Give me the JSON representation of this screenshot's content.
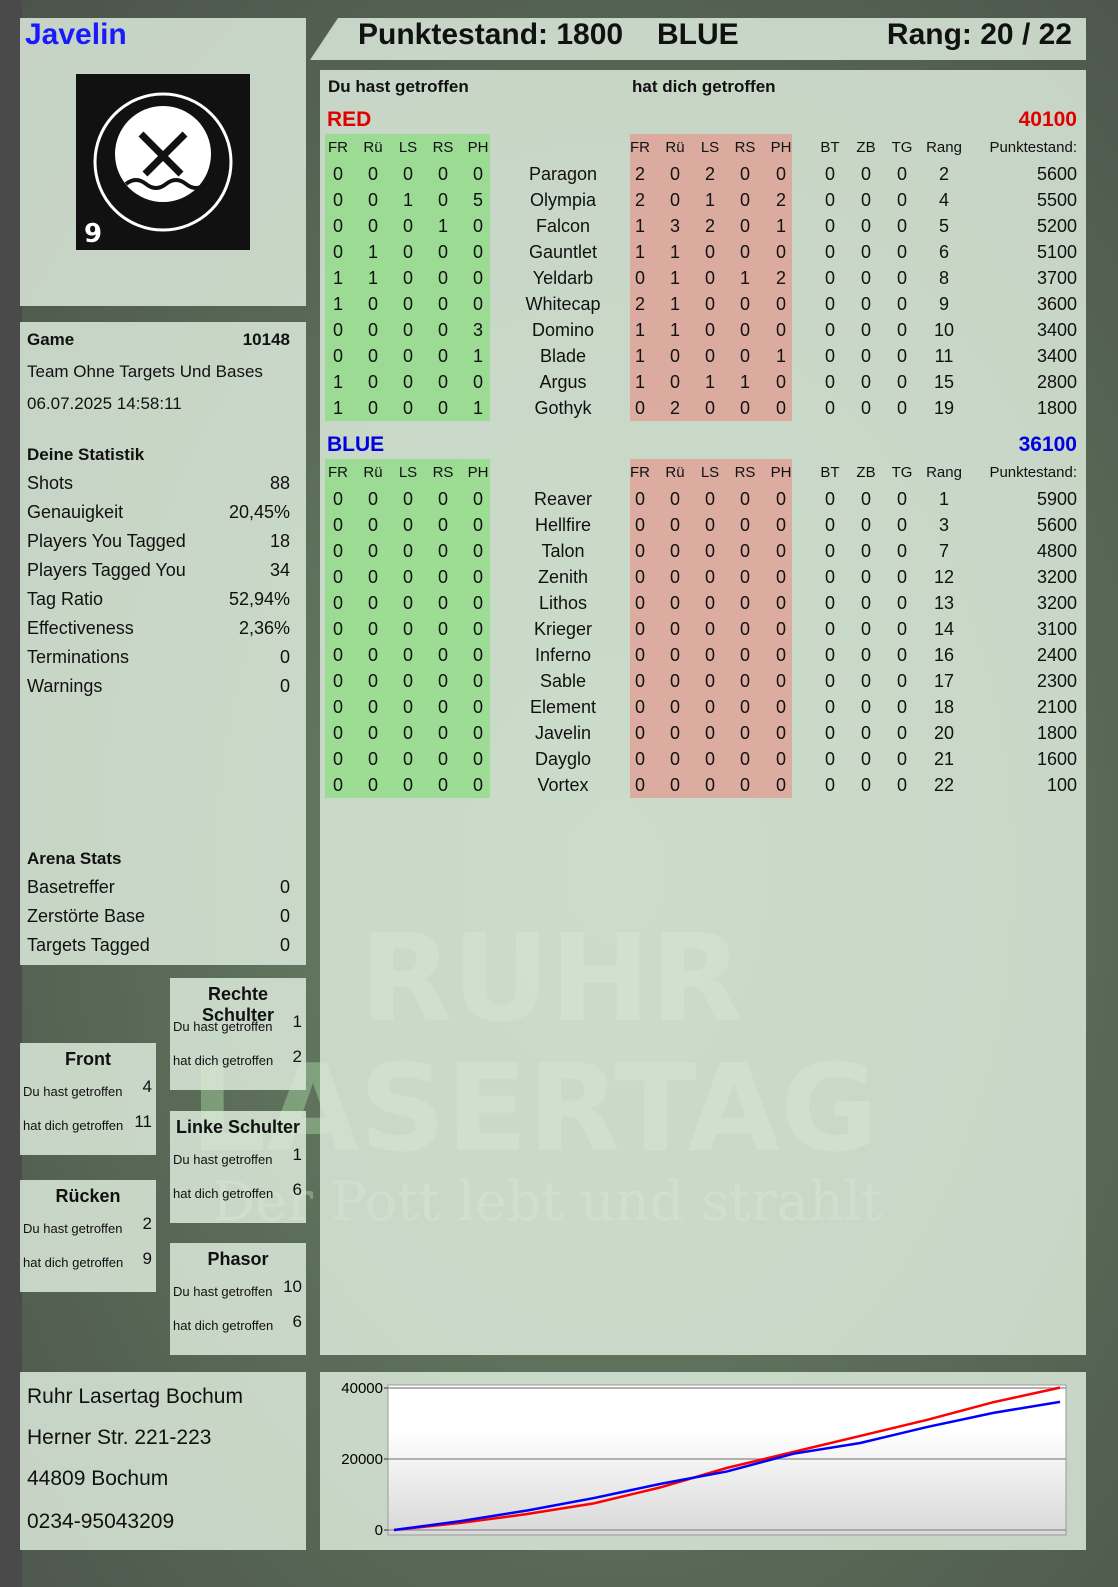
{
  "player": {
    "name": "Javelin",
    "logo_text": "RUHR LASERTAG",
    "logo_number": "9"
  },
  "header": {
    "score": "Punktestand: 1800",
    "team": "BLUE",
    "rank": "Rang: 20 / 22"
  },
  "main": {
    "you_hit_label": "Du hast getroffen",
    "hit_you_label": "hat dich getroffen",
    "columns": [
      "FR",
      "Rü",
      "LS",
      "RS",
      "PH"
    ],
    "extra_columns": [
      "BT",
      "ZB",
      "TG",
      "Rang",
      "Punktestand:"
    ],
    "teams": [
      {
        "name": "RED",
        "total": "40100",
        "color": "#e00000",
        "rows": [
          {
            "you": [
              0,
              0,
              0,
              0,
              0
            ],
            "name": "Paragon",
            "them": [
              2,
              0,
              2,
              0,
              0
            ],
            "extra": [
              0,
              0,
              0,
              2,
              5600
            ]
          },
          {
            "you": [
              0,
              0,
              1,
              0,
              5
            ],
            "name": "Olympia",
            "them": [
              2,
              0,
              1,
              0,
              2
            ],
            "extra": [
              0,
              0,
              0,
              4,
              5500
            ]
          },
          {
            "you": [
              0,
              0,
              0,
              1,
              0
            ],
            "name": "Falcon",
            "them": [
              1,
              3,
              2,
              0,
              1
            ],
            "extra": [
              0,
              0,
              0,
              5,
              5200
            ]
          },
          {
            "you": [
              0,
              1,
              0,
              0,
              0
            ],
            "name": "Gauntlet",
            "them": [
              1,
              1,
              0,
              0,
              0
            ],
            "extra": [
              0,
              0,
              0,
              6,
              5100
            ]
          },
          {
            "you": [
              1,
              1,
              0,
              0,
              0
            ],
            "name": "Yeldarb",
            "them": [
              0,
              1,
              0,
              1,
              2
            ],
            "extra": [
              0,
              0,
              0,
              8,
              3700
            ]
          },
          {
            "you": [
              1,
              0,
              0,
              0,
              0
            ],
            "name": "Whitecap",
            "them": [
              2,
              1,
              0,
              0,
              0
            ],
            "extra": [
              0,
              0,
              0,
              9,
              3600
            ]
          },
          {
            "you": [
              0,
              0,
              0,
              0,
              3
            ],
            "name": "Domino",
            "them": [
              1,
              1,
              0,
              0,
              0
            ],
            "extra": [
              0,
              0,
              0,
              10,
              3400
            ]
          },
          {
            "you": [
              0,
              0,
              0,
              0,
              1
            ],
            "name": "Blade",
            "them": [
              1,
              0,
              0,
              0,
              1
            ],
            "extra": [
              0,
              0,
              0,
              11,
              3400
            ]
          },
          {
            "you": [
              1,
              0,
              0,
              0,
              0
            ],
            "name": "Argus",
            "them": [
              1,
              0,
              1,
              1,
              0
            ],
            "extra": [
              0,
              0,
              0,
              15,
              2800
            ]
          },
          {
            "you": [
              1,
              0,
              0,
              0,
              1
            ],
            "name": "Gothyk",
            "them": [
              0,
              2,
              0,
              0,
              0
            ],
            "extra": [
              0,
              0,
              0,
              19,
              1800
            ]
          }
        ]
      },
      {
        "name": "BLUE",
        "total": "36100",
        "color": "#0000e0",
        "rows": [
          {
            "you": [
              0,
              0,
              0,
              0,
              0
            ],
            "name": "Reaver",
            "them": [
              0,
              0,
              0,
              0,
              0
            ],
            "extra": [
              0,
              0,
              0,
              1,
              5900
            ]
          },
          {
            "you": [
              0,
              0,
              0,
              0,
              0
            ],
            "name": "Hellfire",
            "them": [
              0,
              0,
              0,
              0,
              0
            ],
            "extra": [
              0,
              0,
              0,
              3,
              5600
            ]
          },
          {
            "you": [
              0,
              0,
              0,
              0,
              0
            ],
            "name": "Talon",
            "them": [
              0,
              0,
              0,
              0,
              0
            ],
            "extra": [
              0,
              0,
              0,
              7,
              4800
            ]
          },
          {
            "you": [
              0,
              0,
              0,
              0,
              0
            ],
            "name": "Zenith",
            "them": [
              0,
              0,
              0,
              0,
              0
            ],
            "extra": [
              0,
              0,
              0,
              12,
              3200
            ]
          },
          {
            "you": [
              0,
              0,
              0,
              0,
              0
            ],
            "name": "Lithos",
            "them": [
              0,
              0,
              0,
              0,
              0
            ],
            "extra": [
              0,
              0,
              0,
              13,
              3200
            ]
          },
          {
            "you": [
              0,
              0,
              0,
              0,
              0
            ],
            "name": "Krieger",
            "them": [
              0,
              0,
              0,
              0,
              0
            ],
            "extra": [
              0,
              0,
              0,
              14,
              3100
            ]
          },
          {
            "you": [
              0,
              0,
              0,
              0,
              0
            ],
            "name": "Inferno",
            "them": [
              0,
              0,
              0,
              0,
              0
            ],
            "extra": [
              0,
              0,
              0,
              16,
              2400
            ]
          },
          {
            "you": [
              0,
              0,
              0,
              0,
              0
            ],
            "name": "Sable",
            "them": [
              0,
              0,
              0,
              0,
              0
            ],
            "extra": [
              0,
              0,
              0,
              17,
              2300
            ]
          },
          {
            "you": [
              0,
              0,
              0,
              0,
              0
            ],
            "name": "Element",
            "them": [
              0,
              0,
              0,
              0,
              0
            ],
            "extra": [
              0,
              0,
              0,
              18,
              2100
            ]
          },
          {
            "you": [
              0,
              0,
              0,
              0,
              0
            ],
            "name": "Javelin",
            "them": [
              0,
              0,
              0,
              0,
              0
            ],
            "extra": [
              0,
              0,
              0,
              20,
              1800
            ]
          },
          {
            "you": [
              0,
              0,
              0,
              0,
              0
            ],
            "name": "Dayglo",
            "them": [
              0,
              0,
              0,
              0,
              0
            ],
            "extra": [
              0,
              0,
              0,
              21,
              1600
            ]
          },
          {
            "you": [
              0,
              0,
              0,
              0,
              0
            ],
            "name": "Vortex",
            "them": [
              0,
              0,
              0,
              0,
              0
            ],
            "extra": [
              0,
              0,
              0,
              22,
              100
            ]
          }
        ]
      }
    ]
  },
  "game": {
    "label": "Game",
    "number": "10148",
    "mode": "Team Ohne Targets Und Bases",
    "datetime": "06.07.2025 14:58:11"
  },
  "stats": {
    "title": "Deine Statistik",
    "items": [
      {
        "label": "Shots",
        "value": "88"
      },
      {
        "label": "Genauigkeit",
        "value": "20,45%"
      },
      {
        "label": "Players You Tagged",
        "value": "18"
      },
      {
        "label": "Players Tagged You",
        "value": "34"
      },
      {
        "label": "Tag Ratio",
        "value": "52,94%"
      },
      {
        "label": "Effectiveness",
        "value": "2,36%"
      },
      {
        "label": "Terminations",
        "value": "0"
      },
      {
        "label": "Warnings",
        "value": "0"
      }
    ]
  },
  "arena": {
    "title": "Arena Stats",
    "items": [
      {
        "label": "Basetreffer",
        "value": "0"
      },
      {
        "label": "Zerstörte Base",
        "value": "0"
      },
      {
        "label": "Targets Tagged",
        "value": "0"
      }
    ]
  },
  "zones": {
    "you_hit": "Du hast getroffen",
    "hit_you": "hat dich getroffen",
    "front": {
      "title": "Front",
      "you": "4",
      "them": "11"
    },
    "back": {
      "title": "Rücken",
      "you": "2",
      "them": "9"
    },
    "right": {
      "title": "Rechte Schulter",
      "you": "1",
      "them": "2"
    },
    "left": {
      "title": "Linke Schulter",
      "you": "1",
      "them": "6"
    },
    "phasor": {
      "title": "Phasor",
      "you": "10",
      "them": "6"
    }
  },
  "address": {
    "line1": "Ruhr Lasertag Bochum",
    "line2": "Herner Str. 221-223",
    "line3": "44809 Bochum",
    "line4": "0234-95043209"
  },
  "watermark": {
    "line1": "RUHR",
    "line2": "LASERTAG",
    "line3": "Der Pott lebt und strahlt"
  },
  "chart_data": {
    "type": "line",
    "ylim": [
      0,
      40000
    ],
    "yticks": [
      "40000",
      "20000",
      "0"
    ],
    "grid": true,
    "legend": "none",
    "x": [
      0,
      1,
      2,
      3,
      4,
      5,
      6,
      7,
      8,
      9,
      10
    ],
    "series": [
      {
        "color": "#ff0000",
        "values": [
          0,
          2000,
          4500,
          7500,
          12000,
          17500,
          22000,
          26500,
          31000,
          36000,
          40100
        ]
      },
      {
        "color": "#0000ff",
        "values": [
          0,
          2500,
          5500,
          9000,
          13000,
          16500,
          21500,
          24500,
          29000,
          33000,
          36100
        ]
      }
    ]
  }
}
